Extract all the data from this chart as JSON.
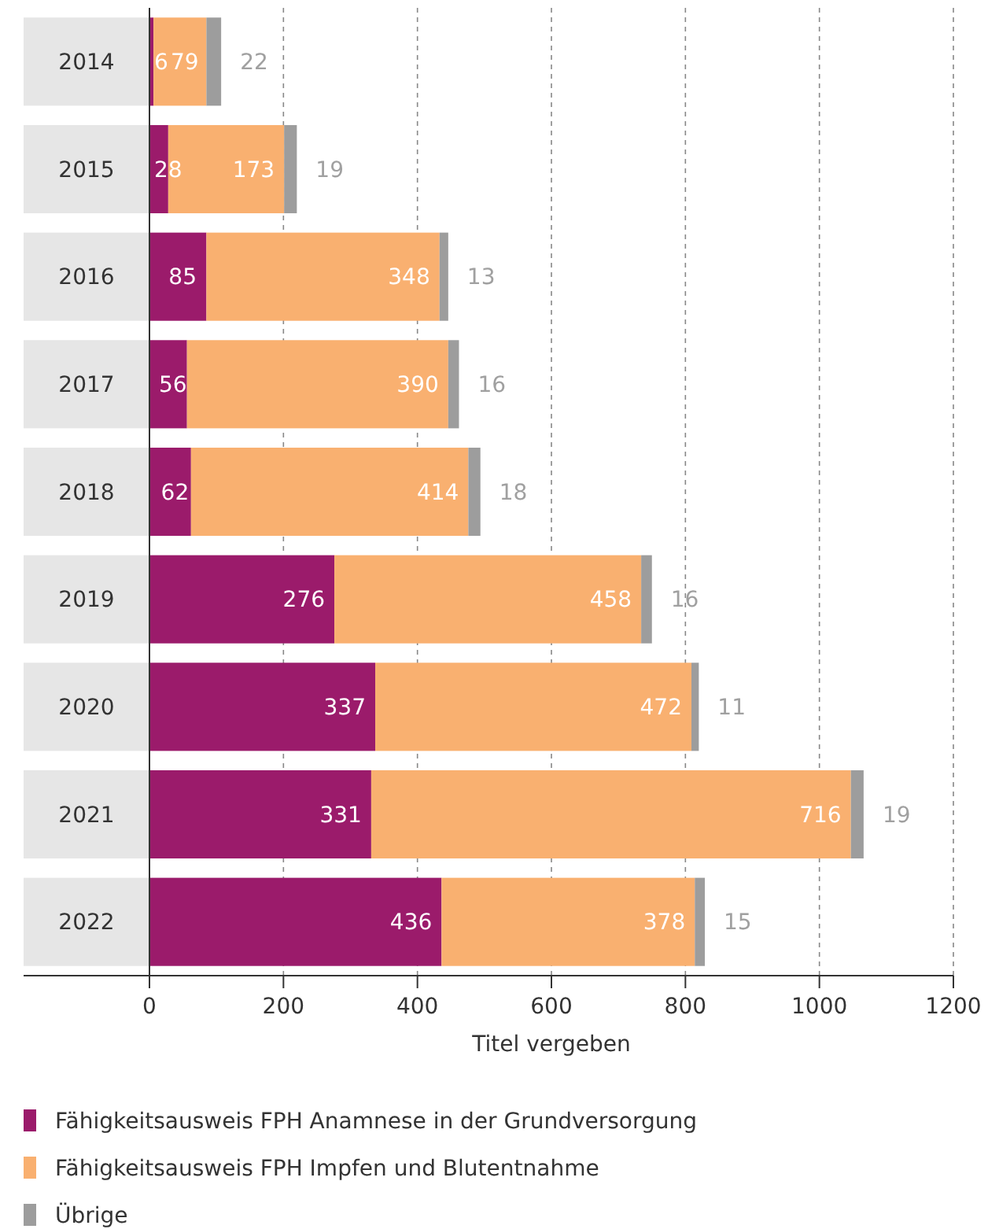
{
  "chart_data": {
    "type": "bar",
    "orientation": "horizontal",
    "stacked": true,
    "xlabel": "Titel vergeben",
    "categories": [
      "2014",
      "2015",
      "2016",
      "2017",
      "2018",
      "2019",
      "2020",
      "2021",
      "2022"
    ],
    "series": [
      {
        "name": "Fähigkeitsausweis FPH Anamnese in der Grundversorgung",
        "color": "#9b1b6b",
        "values": [
          6,
          28,
          85,
          56,
          62,
          276,
          337,
          331,
          436
        ]
      },
      {
        "name": "Fähigkeitsausweis FPH Impfen und Blutentnahme",
        "color": "#f9b070",
        "values": [
          79,
          173,
          348,
          390,
          414,
          458,
          472,
          716,
          378
        ]
      },
      {
        "name": "Übrige",
        "color": "#9d9d9d",
        "values": [
          22,
          19,
          13,
          16,
          18,
          16,
          11,
          19,
          15
        ]
      }
    ],
    "xlim": [
      0,
      1200
    ],
    "xticks": [
      0,
      200,
      400,
      600,
      800,
      1000,
      1200
    ],
    "grid": "x",
    "data_labels": true,
    "legend": "bottom left"
  }
}
